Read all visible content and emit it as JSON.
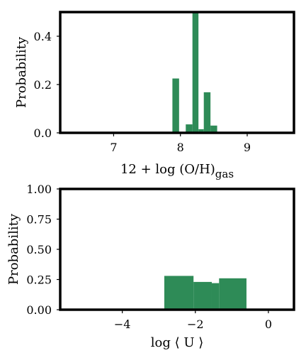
{
  "bar_color": "#2e8b57",
  "chart_data": [
    {
      "type": "bar",
      "xlabel": "12 + log (O/H)",
      "xlabel_subscript": "gas",
      "ylabel": "Probability",
      "xlim": [
        6.2,
        9.7
      ],
      "ylim": [
        0,
        0.5
      ],
      "xticks": [
        7,
        8,
        9
      ],
      "xtick_labels": [
        "7",
        "8",
        "9"
      ],
      "yticks": [
        0.0,
        0.2,
        0.4
      ],
      "ytick_labels": [
        "0.0",
        "0.2",
        "0.4"
      ],
      "bins": [
        {
          "x0": 7.88,
          "x1": 7.98,
          "value": 0.225
        },
        {
          "x0": 8.08,
          "x1": 8.18,
          "value": 0.035
        },
        {
          "x0": 8.18,
          "x1": 8.27,
          "value": 0.5
        },
        {
          "x0": 8.27,
          "x1": 8.35,
          "value": 0.015
        },
        {
          "x0": 8.35,
          "x1": 8.45,
          "value": 0.168
        },
        {
          "x0": 8.45,
          "x1": 8.55,
          "value": 0.03
        }
      ]
    },
    {
      "type": "bar",
      "xlabel": "log ⟨ U ⟩",
      "ylabel": "Probability",
      "xlim": [
        -5.7,
        0.7
      ],
      "ylim": [
        0,
        1.0
      ],
      "xticks": [
        -4,
        -2,
        0
      ],
      "xtick_labels": [
        "−4",
        "−2",
        "0"
      ],
      "yticks": [
        0.0,
        0.25,
        0.5,
        0.75,
        1.0
      ],
      "ytick_labels": [
        "0.00",
        "0.25",
        "0.50",
        "0.75",
        "1.00"
      ],
      "bins": [
        {
          "x0": -2.85,
          "x1": -2.05,
          "value": 0.28
        },
        {
          "x0": -2.05,
          "x1": -1.55,
          "value": 0.23
        },
        {
          "x0": -1.55,
          "x1": -1.35,
          "value": 0.22
        },
        {
          "x0": -1.35,
          "x1": -0.6,
          "value": 0.26
        }
      ]
    }
  ]
}
